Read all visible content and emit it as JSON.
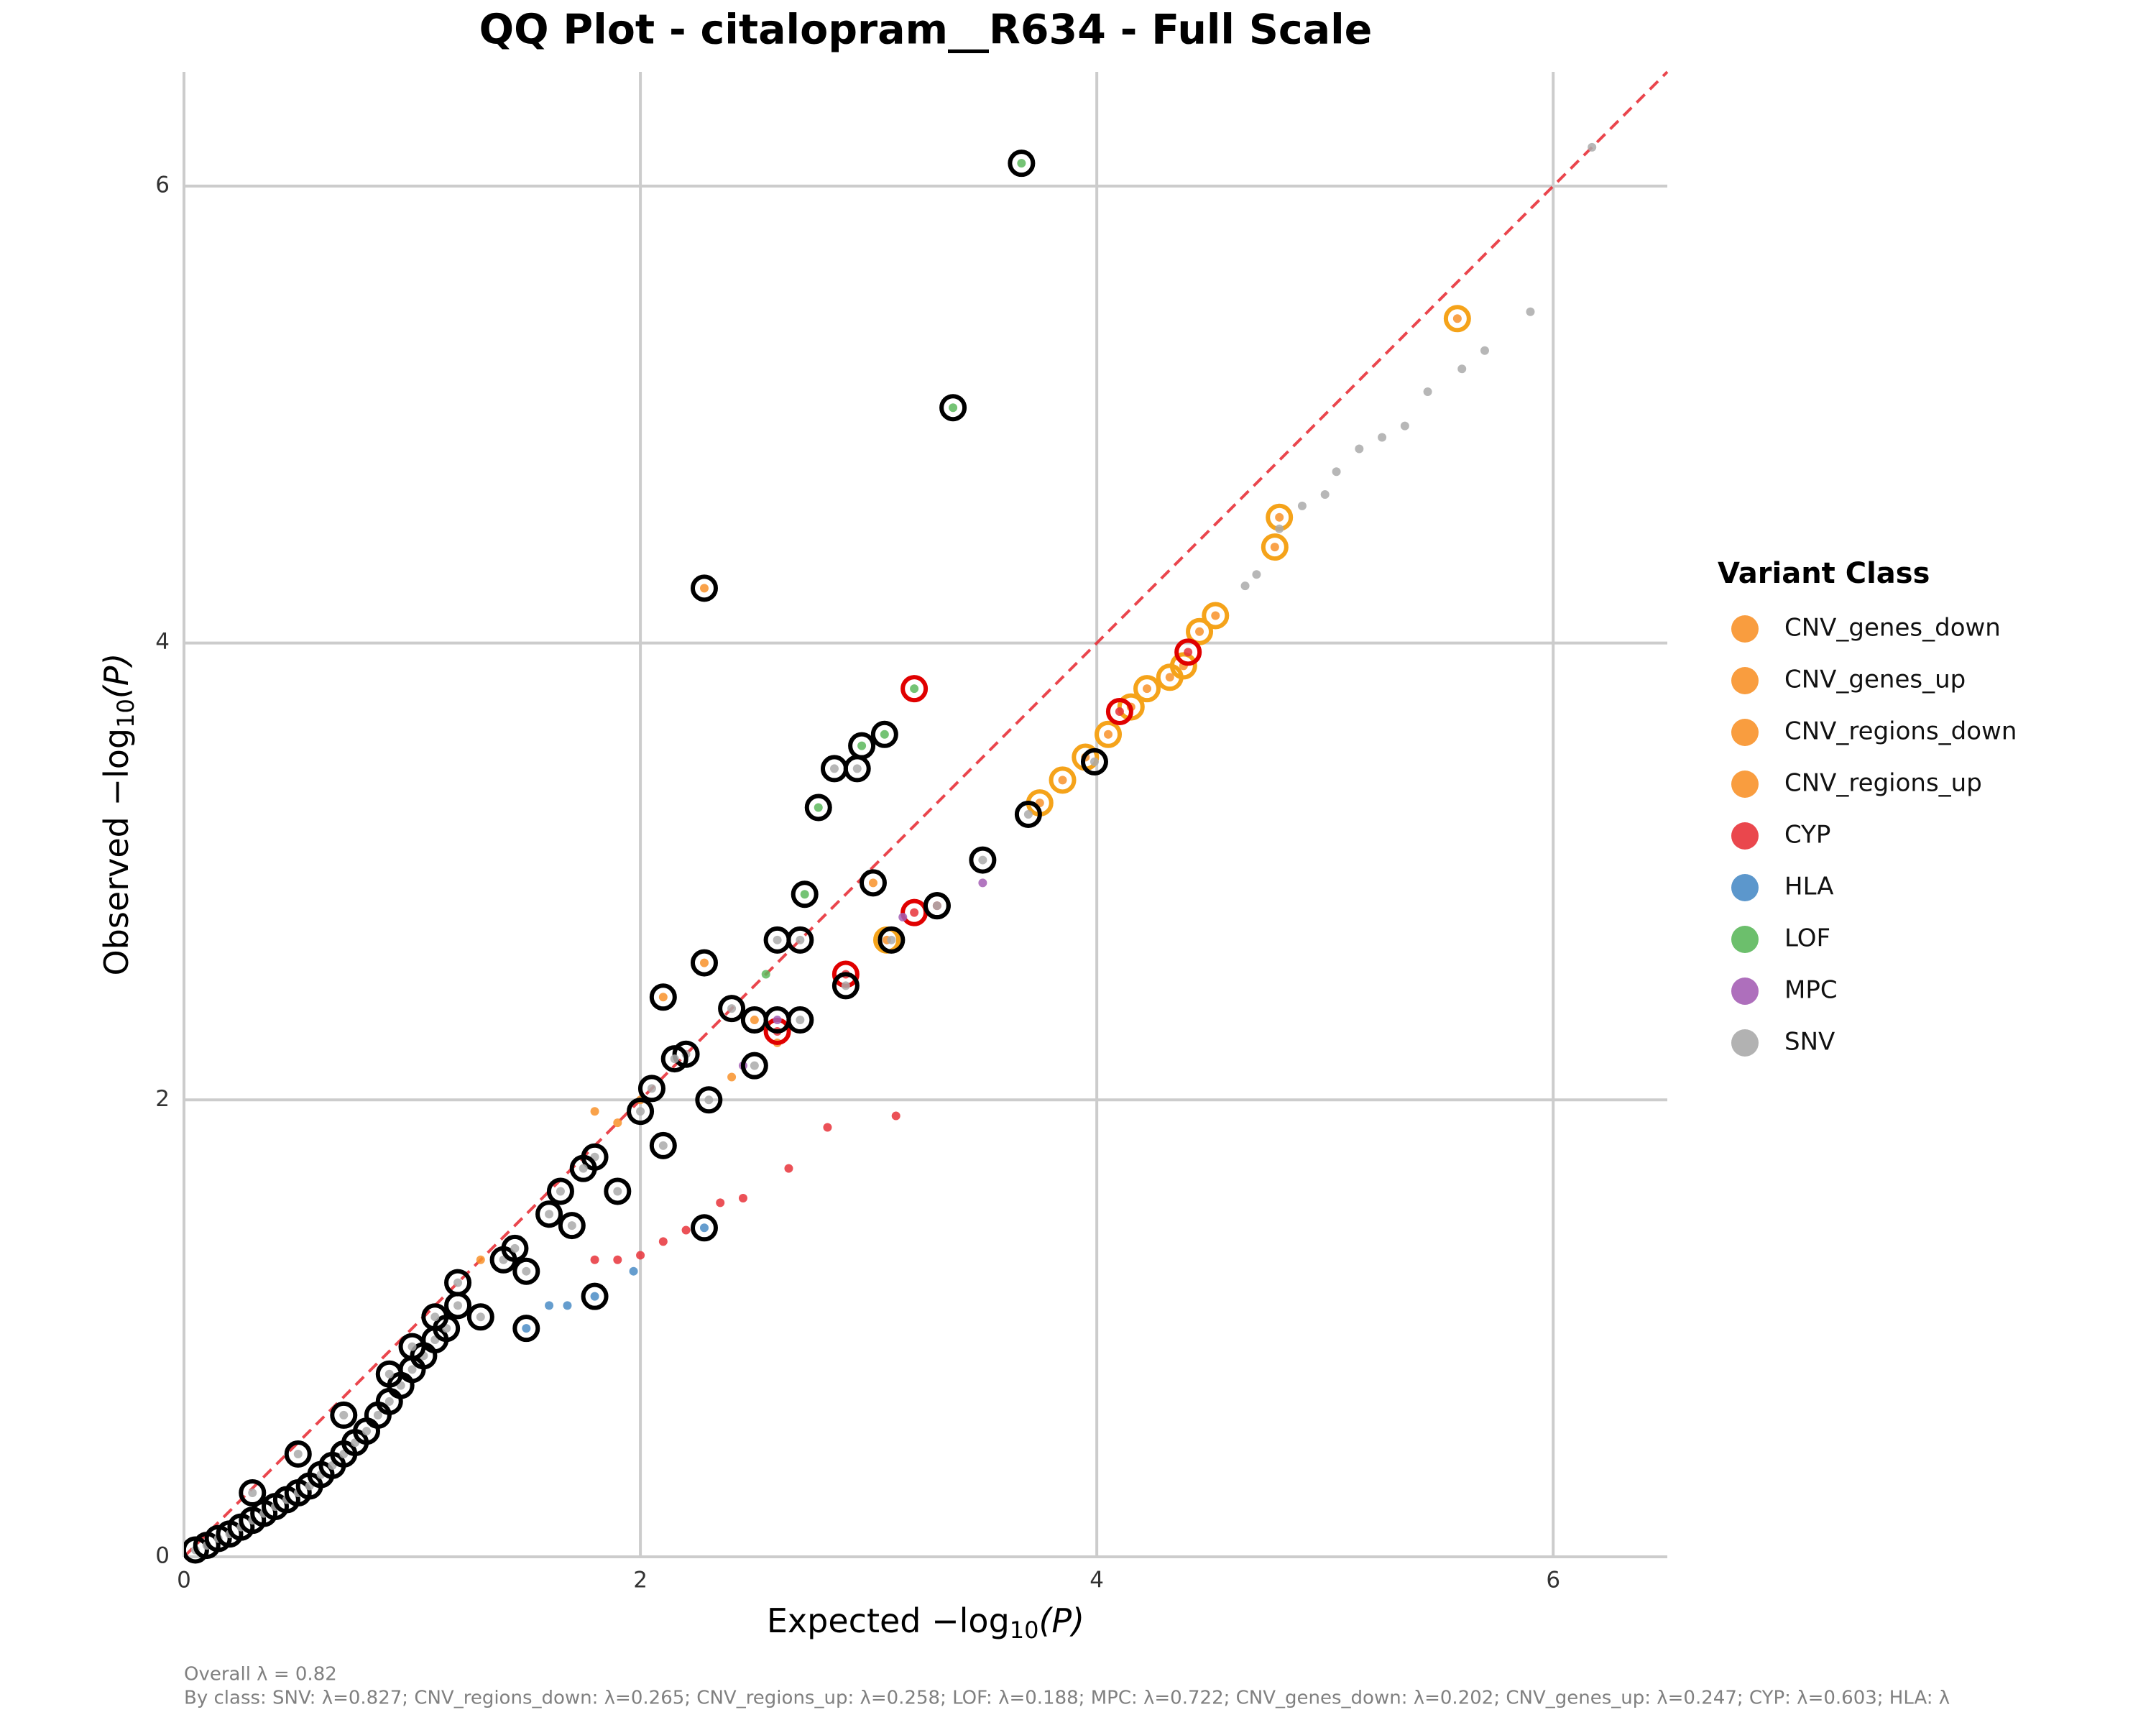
{
  "chart_data": {
    "type": "scatter",
    "title": "QQ Plot - citalopram__R634 - Full Scale",
    "x_label": [
      "Expected −log",
      "10",
      "(P)"
    ],
    "y_label": [
      "Observed −log",
      "10",
      "(P)"
    ],
    "xlim": [
      0,
      6.5
    ],
    "ylim": [
      0,
      6.5
    ],
    "xticks": [
      0,
      2,
      4,
      6
    ],
    "yticks": [
      0,
      2,
      4,
      6
    ],
    "grid": true,
    "reference_line": {
      "color": "#e8333a",
      "dashed": true
    },
    "legend": {
      "title": "Variant Class",
      "position": "right"
    },
    "footer": [
      "Overall λ = 0.82",
      "By class: SNV: λ=0.827; CNV_regions_down: λ=0.265; CNV_regions_up: λ=0.258; LOF: λ=0.188; MPC: λ=0.722; CNV_genes_down: λ=0.202; CNV_genes_up: λ=0.247; CYP: λ=0.603; HLA: λ"
    ],
    "series": [
      {
        "name": "CNV_genes_down",
        "color": "#f8922a",
        "x": [
          3.75,
          3.85,
          3.95,
          4.05,
          4.15,
          4.22,
          4.32,
          4.38,
          4.45,
          4.52,
          4.78,
          4.8,
          5.58,
          2.28,
          2.1,
          2.28,
          3.02,
          1.8
        ],
        "y": [
          3.3,
          3.4,
          3.5,
          3.6,
          3.72,
          3.8,
          3.85,
          3.9,
          4.05,
          4.12,
          4.42,
          4.55,
          5.42,
          4.24,
          2.45,
          2.6,
          2.95,
          1.95
        ],
        "ring": [
          "#f5a31a",
          "#f5a31a",
          "#f5a31a",
          "#f5a31a",
          "#f5a31a",
          "#f5a31a",
          "#f5a31a",
          "#f5a31a",
          "#f5a31a",
          "#f5a31a",
          "#f5a31a",
          "#f5a31a",
          "#f5a31a",
          "#000000",
          "#000000",
          "#000000",
          "#000000",
          null
        ]
      },
      {
        "name": "CNV_genes_up",
        "color": "#f8922a",
        "x": [
          2.5,
          1.3,
          3.08
        ],
        "y": [
          2.35,
          1.3,
          2.7
        ],
        "ring": [
          "#000000",
          null,
          "#f5a31a"
        ]
      },
      {
        "name": "CNV_regions_down",
        "color": "#f8922a",
        "x": [
          2.4,
          2.6
        ],
        "y": [
          2.1,
          2.25
        ],
        "ring": [
          null,
          null
        ]
      },
      {
        "name": "CNV_regions_up",
        "color": "#f8922a",
        "x": [
          1.9,
          2.0
        ],
        "y": [
          1.9,
          2.0
        ],
        "ring": [
          null,
          null
        ]
      },
      {
        "name": "CYP",
        "color": "#e8333a",
        "x": [
          1.8,
          1.9,
          2.0,
          2.1,
          2.2,
          2.35,
          2.45,
          2.65,
          2.82,
          3.12,
          3.3,
          4.1,
          4.4,
          2.6,
          2.9,
          3.2
        ],
        "y": [
          1.3,
          1.3,
          1.32,
          1.38,
          1.43,
          1.55,
          1.57,
          1.7,
          1.88,
          1.93,
          2.85,
          3.7,
          3.96,
          2.3,
          2.55,
          2.82
        ],
        "ring": [
          null,
          null,
          null,
          null,
          null,
          null,
          null,
          null,
          null,
          null,
          "#000000",
          "#e00000",
          "#e00000",
          "#e00000",
          "#e00000",
          "#e00000"
        ]
      },
      {
        "name": "HLA",
        "color": "#4a8cc6",
        "x": [
          1.5,
          1.6,
          1.68,
          1.97,
          2.28,
          1.8
        ],
        "y": [
          1.0,
          1.1,
          1.1,
          1.25,
          1.44,
          1.14
        ],
        "ring": [
          "#000000",
          null,
          null,
          null,
          "#000000",
          "#000000"
        ]
      },
      {
        "name": "LOF",
        "color": "#5cb85c",
        "x": [
          3.67,
          3.37,
          2.78,
          2.97,
          3.07,
          3.2,
          2.72,
          2.55
        ],
        "y": [
          6.1,
          5.03,
          3.28,
          3.55,
          3.6,
          3.8,
          2.9,
          2.55
        ],
        "ring": [
          "#000000",
          "#000000",
          "#000000",
          "#000000",
          "#000000",
          "#e00000",
          "#000000",
          null
        ]
      },
      {
        "name": "MPC",
        "color": "#a55fb5",
        "x": [
          3.15,
          3.5,
          2.6,
          2.45
        ],
        "y": [
          2.8,
          2.95,
          2.35,
          2.15
        ],
        "ring": [
          null,
          null,
          "#000000",
          null
        ]
      },
      {
        "name": "SNV",
        "color": "#aaaaaa",
        "x": [
          4.65,
          4.7,
          4.8,
          4.9,
          5.0,
          5.05,
          5.15,
          5.25,
          5.35,
          5.45,
          5.6,
          5.7,
          5.9,
          6.17,
          0.05,
          0.1,
          0.15,
          0.2,
          0.25,
          0.3,
          0.35,
          0.4,
          0.45,
          0.5,
          0.55,
          0.6,
          0.65,
          0.7,
          0.75,
          0.8,
          0.85,
          0.9,
          0.95,
          1.0,
          1.05,
          1.1,
          1.15,
          0.3,
          0.5,
          0.7,
          0.9,
          1.0,
          1.1,
          1.3,
          1.5,
          1.7,
          1.9,
          2.1,
          2.3,
          2.5,
          2.7,
          2.9,
          3.1,
          3.3,
          3.5,
          3.7,
          3.99,
          1.2,
          1.4,
          1.6,
          1.8,
          2.0,
          2.2,
          2.4,
          2.6,
          2.7,
          2.85,
          2.95,
          1.2,
          1.45,
          1.65,
          1.75,
          2.05,
          2.15
        ],
        "y": [
          4.25,
          4.3,
          4.5,
          4.6,
          4.65,
          4.75,
          4.85,
          4.9,
          4.95,
          5.1,
          5.2,
          5.28,
          5.45,
          6.17,
          0.03,
          0.05,
          0.08,
          0.1,
          0.13,
          0.16,
          0.19,
          0.22,
          0.25,
          0.28,
          0.31,
          0.36,
          0.4,
          0.45,
          0.5,
          0.55,
          0.62,
          0.68,
          0.75,
          0.82,
          0.88,
          0.95,
          1.0,
          0.28,
          0.45,
          0.62,
          0.8,
          0.92,
          1.05,
          1.05,
          1.25,
          1.45,
          1.6,
          1.8,
          2.0,
          2.15,
          2.35,
          2.5,
          2.7,
          2.85,
          3.05,
          3.25,
          3.48,
          1.1,
          1.3,
          1.5,
          1.75,
          1.95,
          2.2,
          2.4,
          2.7,
          2.7,
          3.45,
          3.45,
          1.2,
          1.35,
          1.6,
          1.7,
          2.05,
          2.18
        ],
        "ring": [
          null,
          null,
          null,
          null,
          null,
          null,
          null,
          null,
          null,
          null,
          null,
          null,
          null,
          null,
          "#000000",
          "#000000",
          "#000000",
          "#000000",
          "#000000",
          "#000000",
          "#000000",
          "#000000",
          "#000000",
          "#000000",
          "#000000",
          "#000000",
          "#000000",
          "#000000",
          "#000000",
          "#000000",
          "#000000",
          "#000000",
          "#000000",
          "#000000",
          "#000000",
          "#000000",
          "#000000",
          "#000000",
          "#000000",
          "#000000",
          "#000000",
          "#000000",
          "#000000",
          "#000000",
          "#000000",
          "#000000",
          "#000000",
          "#000000",
          "#000000",
          "#000000",
          "#000000",
          "#000000",
          "#000000",
          "#000000",
          "#000000",
          "#000000",
          "#000000",
          "#000000",
          "#000000",
          "#000000",
          "#000000",
          "#000000",
          "#000000",
          "#000000",
          "#000000",
          "#000000",
          "#000000",
          "#000000",
          "#000000",
          "#000000",
          "#000000",
          "#000000",
          "#000000",
          "#000000"
        ]
      }
    ]
  }
}
